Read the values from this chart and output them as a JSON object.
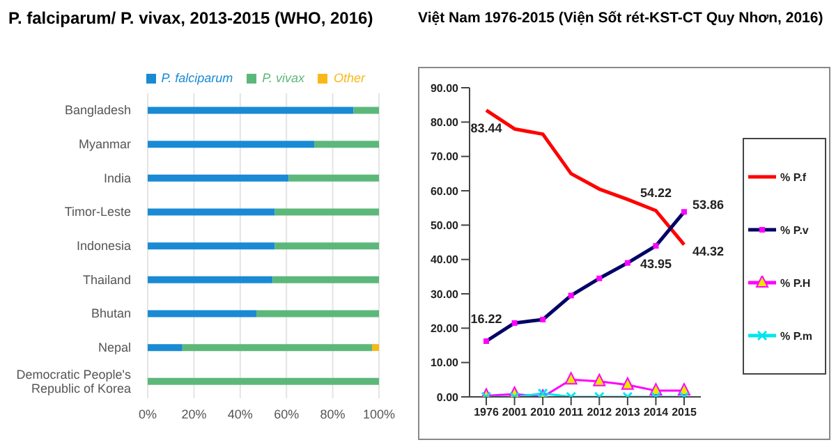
{
  "chart_data": [
    {
      "type": "bar",
      "orientation": "horizontal",
      "stacked": true,
      "title": "P. falciparum/ P. vivax, 2013-2015 (WHO, 2016)",
      "categories": [
        "Bangladesh",
        "Myanmar",
        "India",
        "Timor-Leste",
        "Indonesia",
        "Thailand",
        "Bhutan",
        "Nepal",
        "Democratic People's Republic of Korea"
      ],
      "series": [
        {
          "name": "P. falciparum",
          "color": "#1a8ad4",
          "values": [
            89,
            72,
            61,
            55,
            55,
            54,
            47,
            15,
            0
          ]
        },
        {
          "name": "P. vivax",
          "color": "#5cb87a",
          "values": [
            11,
            28,
            39,
            45,
            45,
            46,
            53,
            82,
            100
          ]
        },
        {
          "name": "Other",
          "color": "#f8b818",
          "values": [
            0,
            0,
            0,
            0,
            0,
            0,
            0,
            3,
            0
          ]
        }
      ],
      "xlim": [
        0,
        100
      ],
      "xticks": [
        {
          "value": 0,
          "label": "0%"
        },
        {
          "value": 20,
          "label": "20%"
        },
        {
          "value": 40,
          "label": "40%"
        },
        {
          "value": 60,
          "label": "60%"
        },
        {
          "value": 80,
          "label": "80%"
        },
        {
          "value": 100,
          "label": "100%"
        }
      ],
      "grid": "x",
      "legend": "top right"
    },
    {
      "type": "line",
      "title": "Việt Nam 1976-2015 (Viện Sốt rét-KST-CT Quy Nhơn, 2016)",
      "categories": [
        "1976",
        "2001",
        "2010",
        "2011",
        "2012",
        "2013",
        "2014",
        "2015"
      ],
      "series": [
        {
          "name": "% P.f",
          "color": "#ff0000",
          "marker": "none",
          "values": [
            83.44,
            78,
            76.5,
            65,
            60.5,
            57.5,
            54.22,
            44.32
          ],
          "value_labels": [
            "83.44",
            null,
            null,
            null,
            null,
            null,
            "54.22",
            "44.32"
          ]
        },
        {
          "name": "% P.v",
          "color": "#000066",
          "marker": "square",
          "values": [
            16.22,
            21.5,
            22.5,
            29.5,
            34.5,
            39,
            43.95,
            53.86
          ],
          "value_labels": [
            "16.22",
            null,
            null,
            null,
            null,
            null,
            "43.95",
            "53.86"
          ]
        },
        {
          "name": "% P.H",
          "color": "#ff00ff",
          "marker": "triangle",
          "values": [
            0.3,
            0.8,
            0,
            5,
            4.5,
            3.5,
            1.8,
            1.8
          ]
        },
        {
          "name": "% P.m",
          "color": "#00e5ee",
          "marker": "cross",
          "values": [
            0,
            0,
            1,
            0,
            0,
            0,
            0,
            0
          ]
        }
      ],
      "ylim": [
        0,
        90
      ],
      "yticks": [
        {
          "value": 0,
          "label": "0.00"
        },
        {
          "value": 10,
          "label": "10.00"
        },
        {
          "value": 20,
          "label": "20.00"
        },
        {
          "value": 30,
          "label": "30.00"
        },
        {
          "value": 40,
          "label": "40.00"
        },
        {
          "value": 50,
          "label": "50.00"
        },
        {
          "value": 60,
          "label": "60.00"
        },
        {
          "value": 70,
          "label": "70.00"
        },
        {
          "value": 80,
          "label": "80.00"
        },
        {
          "value": 90,
          "label": "90.00"
        }
      ],
      "grid": false,
      "legend": "right"
    }
  ]
}
